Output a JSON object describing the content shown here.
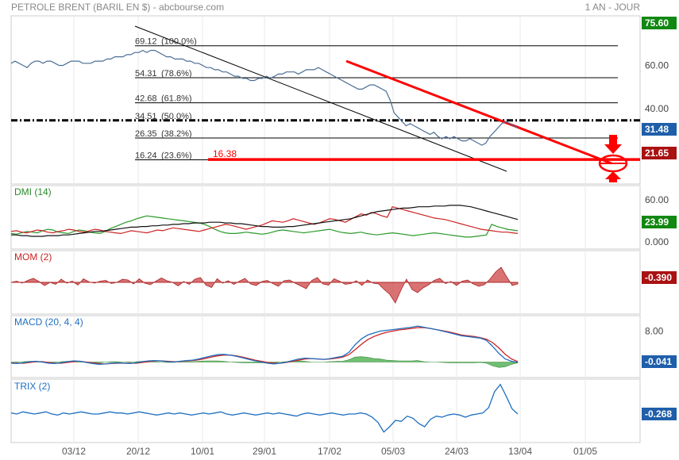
{
  "header": {
    "title": "PETROLE BRENT (BARIL EN $) - abcbourse.com",
    "period": "1 AN - JOUR"
  },
  "colors": {
    "price_line": "#4a6f94",
    "trend_black": "#000000",
    "trend_red": "#ff0000",
    "dmi_green": "#2a9a2a",
    "dmi_red": "#cc2222",
    "dmi_black": "#111111",
    "mom_fill": "#cc4444",
    "macd_blue": "#1f6fc0",
    "macd_red": "#cc2222",
    "macd_hist": "#4caf50",
    "trix_blue": "#1f6fc0",
    "badge_green": "#118811",
    "badge_red": "#aa1111",
    "badge_blue": "#1f5faa"
  },
  "chart_data": [
    {
      "type": "line",
      "panel": "price",
      "title": "PETROLE BRENT (BARIL EN $) - abcbourse.com",
      "y_ticks": [
        "60.00",
        "40.00"
      ],
      "ylim": [
        5,
        83
      ],
      "x_ticks": [
        "03/12",
        "20/12",
        "10/01",
        "29/01",
        "17/02",
        "05/03",
        "24/03",
        "13/04",
        "01/05"
      ],
      "series": [
        {
          "values": [
            61,
            62,
            61,
            60,
            59,
            61,
            62,
            62,
            61,
            62,
            62,
            61,
            60,
            60,
            61,
            62,
            62,
            62,
            61,
            61,
            61,
            62,
            62,
            62,
            63,
            63,
            64,
            64,
            64,
            65,
            65,
            66,
            66,
            67,
            66,
            67,
            67,
            66,
            65,
            64,
            64,
            63,
            63,
            63,
            62,
            62,
            61,
            61,
            60,
            59,
            59,
            58,
            58,
            57,
            57,
            56,
            55,
            55,
            54,
            54,
            53,
            53,
            54,
            54,
            55,
            54,
            55,
            56,
            56,
            57,
            57,
            57,
            56,
            57,
            58,
            58,
            58,
            59,
            58,
            57,
            56,
            55,
            54,
            53,
            52,
            51,
            50,
            49,
            49,
            50,
            51,
            51,
            50,
            49,
            48,
            44,
            38,
            36,
            34,
            32,
            33,
            32,
            31,
            30,
            29,
            28,
            29,
            27,
            26,
            27,
            26,
            27,
            26,
            25,
            25,
            26,
            25,
            24,
            23,
            24,
            27,
            29,
            31,
            33,
            34,
            33,
            32,
            31
          ]
        }
      ],
      "fibonacci": [
        {
          "label": "69.12",
          "pct": "(100.0%)",
          "value": 69.12
        },
        {
          "label": "54.31",
          "pct": "(78.6%)",
          "value": 54.31
        },
        {
          "label": "42.68",
          "pct": "(61.8%)",
          "value": 42.68
        },
        {
          "label": "34.51",
          "pct": "(50.0%)",
          "value": 34.51
        },
        {
          "label": "26.35",
          "pct": "(38.2%)",
          "value": 26.35
        },
        {
          "label": "16.24",
          "pct": "(23.6%)",
          "value": 16.24
        }
      ],
      "support_label": "16.38",
      "support_value": 16.38,
      "top_badge": "75.60",
      "last_badge": "31.48",
      "target_badge": "21.65"
    },
    {
      "type": "line",
      "panel": "dmi",
      "title": "DMI (14)",
      "y_ticks": [
        "60.00",
        "0.000"
      ],
      "ylim": [
        -10,
        80
      ],
      "badge": "23.99",
      "series": [
        {
          "name": "green",
          "values": [
            12,
            11,
            13,
            15,
            14,
            13,
            16,
            18,
            17,
            14,
            13,
            12,
            15,
            17,
            16,
            14,
            13,
            12,
            15,
            19,
            22,
            25,
            28,
            30,
            33,
            35,
            37,
            36,
            35,
            34,
            33,
            32,
            31,
            30,
            29,
            28,
            27,
            25,
            22,
            18,
            15,
            13,
            12,
            12,
            13,
            14,
            13,
            12,
            11,
            12,
            14,
            16,
            17,
            16,
            15,
            14,
            13,
            14,
            15,
            16,
            17,
            18,
            16,
            14,
            13,
            12,
            13,
            14,
            12,
            11,
            10,
            11,
            12,
            13,
            12,
            11,
            10,
            9,
            10,
            11,
            12,
            13,
            12,
            11,
            10,
            9,
            8,
            7,
            7,
            8,
            9,
            10,
            25,
            22,
            20,
            18,
            17,
            16
          ]
        },
        {
          "name": "red",
          "values": [
            15,
            16,
            14,
            13,
            15,
            17,
            16,
            14,
            13,
            15,
            16,
            18,
            17,
            15,
            14,
            16,
            18,
            17,
            15,
            14,
            13,
            12,
            14,
            16,
            15,
            14,
            13,
            15,
            17,
            16,
            18,
            20,
            19,
            18,
            17,
            16,
            15,
            17,
            19,
            21,
            23,
            25,
            24,
            22,
            20,
            18,
            20,
            22,
            24,
            27,
            30,
            29,
            28,
            30,
            33,
            31,
            29,
            27,
            25,
            27,
            30,
            33,
            32,
            30,
            28,
            32,
            36,
            40,
            38,
            42,
            40,
            37,
            35,
            50,
            48,
            46,
            44,
            42,
            40,
            38,
            36,
            34,
            33,
            32,
            30,
            28,
            26,
            24,
            22,
            20,
            18,
            17,
            16,
            15,
            14,
            14,
            13,
            12
          ]
        },
        {
          "name": "black",
          "values": [
            10,
            10,
            9,
            9,
            8,
            8,
            8,
            9,
            9,
            9,
            10,
            10,
            11,
            12,
            13,
            14,
            15,
            15,
            16,
            17,
            18,
            19,
            20,
            21,
            21,
            22,
            22,
            23,
            23,
            24,
            24,
            25,
            25,
            26,
            26,
            27,
            27,
            27,
            28,
            28,
            28,
            27,
            27,
            26,
            26,
            25,
            24,
            23,
            22,
            22,
            21,
            21,
            21,
            22,
            22,
            23,
            24,
            25,
            26,
            27,
            28,
            29,
            30,
            31,
            32,
            33,
            35,
            37,
            39,
            41,
            43,
            44,
            45,
            46,
            47,
            48,
            48,
            49,
            50,
            50,
            50,
            51,
            51,
            51,
            52,
            52,
            52,
            51,
            50,
            48,
            46,
            44,
            42,
            40,
            38,
            36,
            34,
            32
          ]
        }
      ]
    },
    {
      "type": "area",
      "panel": "mom",
      "title": "MOM (2)",
      "ylim": [
        -8,
        8
      ],
      "badge": "-0.390",
      "series": [
        {
          "values": [
            0,
            0.3,
            -0.2,
            0.5,
            1.0,
            0.2,
            -0.8,
            0,
            -0.5,
            0.8,
            -0.2,
            0.3,
            -0.7,
            0.9,
            0.1,
            -0.2,
            0.3,
            0.5,
            -0.3,
            0,
            0.8,
            0.6,
            -0.4,
            0.9,
            -0.2,
            -0.6,
            0.3,
            1.1,
            0.4,
            0,
            -0.9,
            0.2,
            -0.5,
            0.8,
            1.2,
            -0.7,
            -1.3,
            0.9,
            -0.2,
            0.4,
            -0.5,
            0.3,
            1.0,
            -0.4,
            -0.8,
            0.2,
            0.5,
            -0.3,
            -1.0,
            0.4,
            0.6,
            -0.2,
            -0.9,
            -1.6,
            0.5,
            1.2,
            -0.4,
            -0.7,
            0.9,
            0.3,
            -0.5,
            -0.3,
            0.4,
            -0.8,
            0.6,
            -0.2,
            -0.4,
            -1.8,
            -3.0,
            -5.2,
            -2.0,
            0.8,
            -1.8,
            -2.6,
            -1.4,
            -0.6,
            0.5,
            1.0,
            -0.3,
            0.2,
            -0.8,
            0.3,
            0.6,
            -0.4,
            -1.0,
            -0.6,
            0.8,
            2.6,
            3.8,
            1.4,
            -0.8,
            -0.4
          ]
        }
      ]
    },
    {
      "type": "line",
      "panel": "macd",
      "title": "MACD (20, 4, 4)",
      "y_ticks": [
        "8.00"
      ],
      "ylim": [
        -4,
        12
      ],
      "badge": "-0.041",
      "series": [
        {
          "name": "blue",
          "values": [
            -0.3,
            -0.4,
            -0.2,
            0.1,
            0.2,
            0,
            -0.3,
            -0.4,
            -0.2,
            0.1,
            0.3,
            0.2,
            -0.1,
            -0.4,
            -0.6,
            -0.5,
            -0.3,
            -0.2,
            -0.3,
            -0.4,
            -0.2,
            0.1,
            0.3,
            0.4,
            0.3,
            0.1,
            0,
            0.2,
            0.4,
            0.5,
            0.8,
            1.2,
            1.6,
            1.9,
            2.0,
            1.8,
            1.5,
            1.1,
            0.7,
            0.3,
            0,
            -0.3,
            -0.5,
            -0.3,
            0,
            0.4,
            0.8,
            1.0,
            0.9,
            0.8,
            0.7,
            0.9,
            1.2,
            1.5,
            2.5,
            4.5,
            6.0,
            7.0,
            7.5,
            8.0,
            8.2,
            8.4,
            8.6,
            8.8,
            9.0,
            9.3,
            9.0,
            8.7,
            8.4,
            8.0,
            7.6,
            7.2,
            6.8,
            6.6,
            6.4,
            6.2,
            5.6,
            4.0,
            2.2,
            0.8,
            0.2,
            -0.1
          ]
        },
        {
          "name": "red",
          "values": [
            -0.2,
            -0.3,
            -0.3,
            -0.1,
            0.1,
            0.1,
            -0.1,
            -0.3,
            -0.3,
            -0.1,
            0.1,
            0.2,
            0,
            -0.2,
            -0.4,
            -0.5,
            -0.4,
            -0.3,
            -0.3,
            -0.3,
            -0.3,
            -0.1,
            0.1,
            0.3,
            0.3,
            0.2,
            0.1,
            0.1,
            0.3,
            0.4,
            0.6,
            0.9,
            1.3,
            1.6,
            1.8,
            1.8,
            1.6,
            1.3,
            0.9,
            0.5,
            0.2,
            -0.1,
            -0.3,
            -0.3,
            -0.1,
            0.2,
            0.5,
            0.8,
            0.9,
            0.8,
            0.7,
            0.8,
            1.0,
            1.3,
            1.9,
            3.2,
            4.6,
            5.8,
            6.6,
            7.2,
            7.7,
            8.0,
            8.3,
            8.5,
            8.7,
            8.9,
            8.9,
            8.7,
            8.4,
            8.1,
            7.8,
            7.4,
            7.0,
            6.8,
            6.6,
            6.3,
            5.9,
            5.0,
            3.6,
            2.0,
            0.8,
            0.1
          ]
        },
        {
          "name": "hist",
          "values": [
            0,
            -0.1,
            0.1,
            0.2,
            0.1,
            -0.1,
            -0.2,
            -0.1,
            0.1,
            0.2,
            0.2,
            0,
            -0.1,
            -0.2,
            -0.2,
            0,
            0.1,
            0.1,
            0,
            -0.1,
            0.1,
            0.2,
            0.2,
            0.1,
            0,
            -0.1,
            -0.1,
            0.1,
            0.1,
            0.1,
            0.2,
            0.3,
            0.3,
            0.3,
            0.2,
            0,
            -0.1,
            -0.2,
            -0.2,
            -0.2,
            -0.2,
            -0.2,
            -0.2,
            0,
            0.1,
            0.2,
            0.3,
            0.2,
            0,
            0,
            0,
            0.1,
            0.2,
            0.2,
            0.6,
            1.3,
            1.4,
            1.2,
            0.9,
            0.8,
            0.5,
            0.4,
            0.3,
            0.3,
            0.3,
            0.4,
            0.1,
            0,
            0,
            -0.1,
            -0.2,
            -0.2,
            -0.2,
            -0.2,
            -0.2,
            -0.1,
            -0.3,
            -1.0,
            -1.4,
            -1.2,
            -0.6,
            -0.2
          ]
        }
      ]
    },
    {
      "type": "line",
      "panel": "trix",
      "title": "TRIX (2)",
      "ylim": [
        -3,
        3
      ],
      "badge": "-0.268",
      "series": [
        {
          "values": [
            -0.2,
            -0.3,
            -0.1,
            -0.2,
            -0.3,
            -0.2,
            -0.1,
            -0.3,
            -0.4,
            -0.2,
            -0.3,
            -0.2,
            -0.1,
            -0.2,
            -0.3,
            -0.3,
            -0.2,
            -0.1,
            -0.2,
            -0.2,
            -0.3,
            -0.2,
            -0.1,
            -0.2,
            -0.3,
            -0.4,
            -0.3,
            -0.2,
            -0.3,
            -0.2,
            -0.3,
            -0.4,
            -0.3,
            -0.2,
            -0.3,
            -0.2,
            -0.1,
            -0.3,
            -0.4,
            -0.3,
            -0.2,
            -0.3,
            -0.4,
            -0.3,
            -0.2,
            -0.3,
            -0.2,
            -0.3,
            -0.4,
            -0.5,
            -0.3,
            -0.2,
            -0.3,
            -0.4,
            -0.3,
            -0.2,
            -0.3,
            -0.4,
            -0.3,
            -0.3,
            -0.2,
            -0.3,
            -0.6,
            -1.1,
            -2.0,
            -1.5,
            -0.9,
            -1.0,
            -0.5,
            -0.7,
            -1.2,
            -1.5,
            -0.8,
            -0.5,
            -0.6,
            -0.4,
            -0.3,
            -0.4,
            -0.6,
            -0.4,
            -0.3,
            -0.2,
            0.3,
            1.8,
            2.5,
            1.4,
            0.2,
            -0.3
          ]
        }
      ]
    }
  ]
}
